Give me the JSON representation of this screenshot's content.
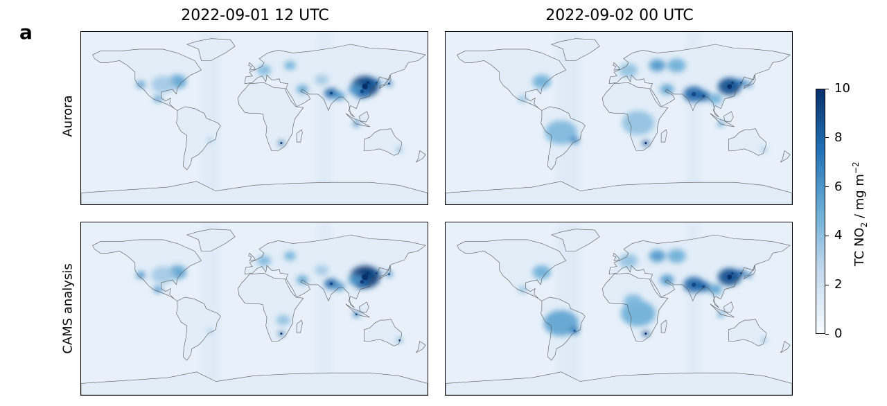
{
  "panel_letter": "a",
  "columns": [
    {
      "title": "2022-09-01 12 UTC"
    },
    {
      "title": "2022-09-02 00 UTC"
    }
  ],
  "rows": [
    {
      "label": "Aurora"
    },
    {
      "label": "CAMS analysis"
    }
  ],
  "colorbar": {
    "label_prefix": "TC NO",
    "label_sub": "2",
    "label_unit": " / mg m",
    "label_sup": "−2",
    "ticks": [
      "0",
      "2",
      "4",
      "6",
      "8",
      "10"
    ],
    "min": 0,
    "max": 10,
    "colormap": "Blues",
    "color_low": "#f7fbff",
    "color_high": "#08306b"
  },
  "map": {
    "projection": "equirectangular",
    "coastline_color": "#555555",
    "background_color": "#edf4fb"
  }
}
